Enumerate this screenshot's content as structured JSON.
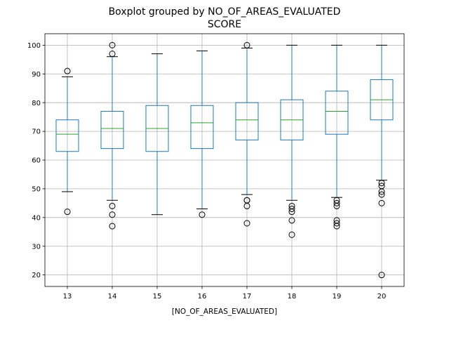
{
  "chart_data": {
    "type": "boxplot",
    "title": "Boxplot grouped by NO_OF_AREAS_EVALUATED",
    "subtitle": "SCORE",
    "xlabel": "[NO_OF_AREAS_EVALUATED]",
    "ylabel": "",
    "categories": [
      "13",
      "14",
      "15",
      "16",
      "17",
      "18",
      "19",
      "20"
    ],
    "ylim": [
      16,
      104
    ],
    "yticks": [
      20,
      30,
      40,
      50,
      60,
      70,
      80,
      90,
      100
    ],
    "grid": true,
    "colors": {
      "box": "#1f77b4",
      "median": "#2ca02c",
      "whisker_cap": "#000000",
      "grid": "#b0b0b0"
    },
    "boxes": [
      {
        "category": "13",
        "q1": 63,
        "median": 69,
        "q3": 74,
        "whisker_low": 49,
        "whisker_high": 89,
        "outliers": [
          42,
          91
        ]
      },
      {
        "category": "14",
        "q1": 64,
        "median": 71,
        "q3": 77,
        "whisker_low": 46,
        "whisker_high": 96,
        "outliers": [
          37,
          41,
          44,
          97,
          100
        ]
      },
      {
        "category": "15",
        "q1": 63,
        "median": 71,
        "q3": 79,
        "whisker_low": 41,
        "whisker_high": 97,
        "outliers": []
      },
      {
        "category": "16",
        "q1": 64,
        "median": 73,
        "q3": 79,
        "whisker_low": 43,
        "whisker_high": 98,
        "outliers": [
          41
        ]
      },
      {
        "category": "17",
        "q1": 67,
        "median": 74,
        "q3": 80,
        "whisker_low": 48,
        "whisker_high": 99,
        "outliers": [
          38,
          44,
          46,
          46,
          100
        ]
      },
      {
        "category": "18",
        "q1": 67,
        "median": 74,
        "q3": 81,
        "whisker_low": 46,
        "whisker_high": 100,
        "outliers": [
          34,
          39,
          42,
          43,
          44
        ]
      },
      {
        "category": "19",
        "q1": 69,
        "median": 77,
        "q3": 84,
        "whisker_low": 47,
        "whisker_high": 100,
        "outliers": [
          37,
          38,
          39,
          44,
          45,
          46
        ]
      },
      {
        "category": "20",
        "q1": 74,
        "median": 81,
        "q3": 88,
        "whisker_low": 53,
        "whisker_high": 100,
        "outliers": [
          20,
          45,
          48,
          49,
          51,
          52
        ]
      }
    ]
  }
}
